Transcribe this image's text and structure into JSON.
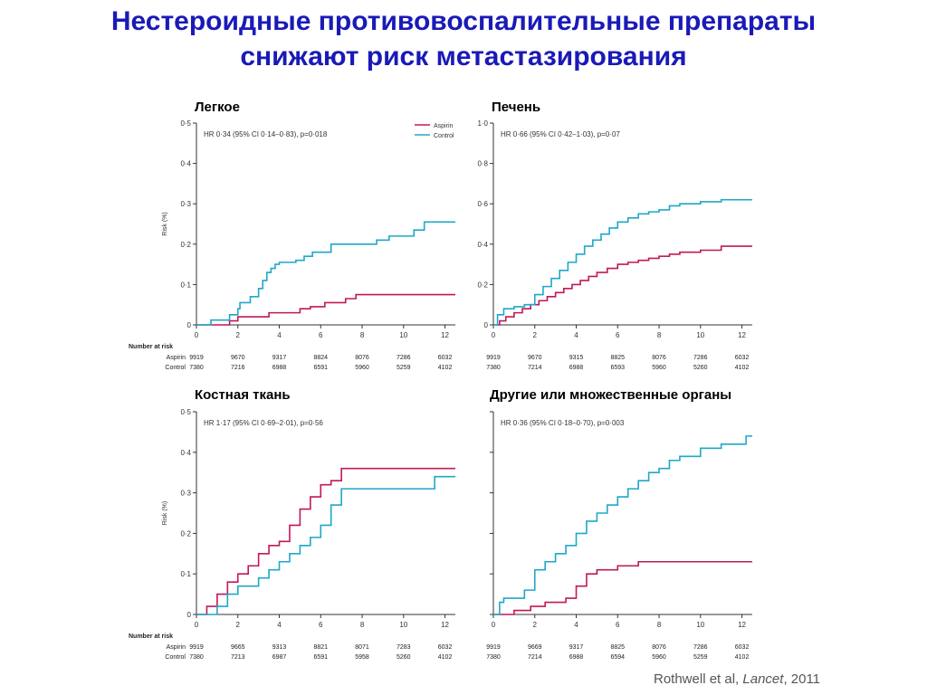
{
  "title_line1": "Нестероидные противовоспалительные препараты",
  "title_line2": "снижают риск метастазирования",
  "citation": {
    "authors": "Rothwell et al, ",
    "journal": "Lancet",
    "year": ", 2011"
  },
  "colors": {
    "title": "#1a1ab8",
    "aspirin": "#c0185a",
    "control": "#1ea8c8"
  },
  "chart_data": [
    {
      "type": "line",
      "panel_label": "Легкое",
      "annotation": "HR 0·34 (95% CI 0·14–0·83), p=0·018",
      "xlabel": "",
      "ylabel": "Risk (%)",
      "xlim": [
        0,
        12.5
      ],
      "ylim": [
        0,
        0.5
      ],
      "xticks": [
        0,
        2,
        4,
        6,
        8,
        10,
        12
      ],
      "yticks": [
        0,
        0.1,
        0.2,
        0.3,
        0.4,
        0.5
      ],
      "ytick_labels": [
        "0",
        "0·1",
        "0·2",
        "0·3",
        "0·4",
        "0·5"
      ],
      "legend": [
        "Aspirin",
        "Control"
      ],
      "legend_position": "top-right",
      "series": [
        {
          "name": "Aspirin",
          "color": "#c0185a",
          "step": true,
          "x": [
            0,
            1.6,
            2,
            3.5,
            5,
            5.5,
            6.2,
            7.2,
            7.7,
            12.5
          ],
          "y": [
            0,
            0.01,
            0.02,
            0.03,
            0.04,
            0.045,
            0.055,
            0.065,
            0.075,
            0.075
          ]
        },
        {
          "name": "Control",
          "color": "#1ea8c8",
          "step": true,
          "x": [
            0,
            0.7,
            1.6,
            2,
            2.1,
            2.6,
            3,
            3.2,
            3.4,
            3.6,
            3.8,
            4,
            4.4,
            4.8,
            5.2,
            5.6,
            6,
            6.5,
            7.3,
            8.7,
            9.3,
            10.5,
            11,
            12.5
          ],
          "y": [
            0,
            0.012,
            0.025,
            0.04,
            0.055,
            0.07,
            0.09,
            0.11,
            0.13,
            0.14,
            0.15,
            0.155,
            0.155,
            0.16,
            0.17,
            0.18,
            0.18,
            0.2,
            0.2,
            0.21,
            0.22,
            0.235,
            0.255,
            0.255
          ]
        }
      ],
      "risk_table": {
        "header": "Number at risk",
        "rows": [
          {
            "label": "Aspirin",
            "values": [
              "9919",
              "9670",
              "9317",
              "8824",
              "8076",
              "7286",
              "6032"
            ]
          },
          {
            "label": "Control",
            "values": [
              "7380",
              "7216",
              "6988",
              "6591",
              "5960",
              "5259",
              "4102"
            ]
          }
        ]
      }
    },
    {
      "type": "line",
      "panel_label": "Печень",
      "annotation": "HR 0·66 (95% CI 0·42–1·03), p=0·07",
      "xlabel": "",
      "ylabel": "",
      "xlim": [
        0,
        12.5
      ],
      "ylim": [
        0,
        1.0
      ],
      "xticks": [
        0,
        2,
        4,
        6,
        8,
        10,
        12
      ],
      "yticks": [
        0,
        0.2,
        0.4,
        0.6,
        0.8,
        1.0
      ],
      "ytick_labels": [
        "0",
        "0·2",
        "0·4",
        "0·6",
        "0·8",
        "1·0"
      ],
      "series": [
        {
          "name": "Aspirin",
          "color": "#c0185a",
          "step": true,
          "x": [
            0,
            0.3,
            0.6,
            1,
            1.4,
            1.8,
            2.2,
            2.6,
            3,
            3.4,
            3.8,
            4.2,
            4.6,
            5,
            5.5,
            6,
            6.5,
            7,
            7.5,
            8,
            8.5,
            9,
            10,
            11,
            12.5
          ],
          "y": [
            0,
            0.02,
            0.04,
            0.06,
            0.08,
            0.1,
            0.12,
            0.14,
            0.16,
            0.18,
            0.2,
            0.22,
            0.24,
            0.26,
            0.28,
            0.3,
            0.31,
            0.32,
            0.33,
            0.34,
            0.35,
            0.36,
            0.37,
            0.39,
            0.39
          ]
        },
        {
          "name": "Control",
          "color": "#1ea8c8",
          "step": true,
          "x": [
            0,
            0.2,
            0.5,
            1,
            1.5,
            2,
            2.4,
            2.8,
            3.2,
            3.6,
            4,
            4.4,
            4.8,
            5.2,
            5.6,
            6,
            6.5,
            7,
            7.5,
            8,
            8.5,
            9,
            10,
            11,
            12.5
          ],
          "y": [
            0,
            0.05,
            0.08,
            0.09,
            0.1,
            0.15,
            0.19,
            0.23,
            0.27,
            0.31,
            0.35,
            0.39,
            0.42,
            0.45,
            0.48,
            0.51,
            0.53,
            0.55,
            0.56,
            0.57,
            0.59,
            0.6,
            0.61,
            0.62,
            0.62
          ]
        }
      ],
      "risk_table": {
        "rows": [
          {
            "label": "Aspirin",
            "values": [
              "9919",
              "9670",
              "9315",
              "8825",
              "8076",
              "7286",
              "6032"
            ]
          },
          {
            "label": "Control",
            "values": [
              "7380",
              "7214",
              "6988",
              "6593",
              "5960",
              "5260",
              "4102"
            ]
          }
        ]
      }
    },
    {
      "type": "line",
      "panel_label": "Костная ткань",
      "annotation": "HR 1·17 (95% CI 0·69–2·01), p=0·56",
      "xlabel": "",
      "ylabel": "Risk (%)",
      "xlim": [
        0,
        12.5
      ],
      "ylim": [
        0,
        0.5
      ],
      "xticks": [
        0,
        2,
        4,
        6,
        8,
        10,
        12
      ],
      "yticks": [
        0,
        0.1,
        0.2,
        0.3,
        0.4,
        0.5
      ],
      "ytick_labels": [
        "0",
        "0·1",
        "0·2",
        "0·3",
        "0·4",
        "0·5"
      ],
      "series": [
        {
          "name": "Aspirin",
          "color": "#c0185a",
          "step": true,
          "x": [
            0,
            0.5,
            1,
            1.5,
            2,
            2.5,
            3,
            3.5,
            4,
            4.5,
            5,
            5.5,
            6,
            6.5,
            7,
            8,
            12.5
          ],
          "y": [
            0,
            0.02,
            0.05,
            0.08,
            0.1,
            0.12,
            0.15,
            0.17,
            0.18,
            0.22,
            0.26,
            0.29,
            0.32,
            0.33,
            0.36,
            0.36,
            0.36
          ]
        },
        {
          "name": "Control",
          "color": "#1ea8c8",
          "step": true,
          "x": [
            0,
            1,
            1.5,
            2,
            3,
            3.5,
            4,
            4.5,
            5,
            5.5,
            6,
            6.5,
            7,
            8,
            9,
            11.5,
            12.5
          ],
          "y": [
            0,
            0.02,
            0.05,
            0.07,
            0.09,
            0.11,
            0.13,
            0.15,
            0.17,
            0.19,
            0.22,
            0.27,
            0.31,
            0.31,
            0.31,
            0.34,
            0.34
          ]
        }
      ],
      "risk_table": {
        "header": "Number at risk",
        "rows": [
          {
            "label": "Aspirin",
            "values": [
              "9919",
              "9665",
              "9313",
              "8821",
              "8071",
              "7283",
              "6032"
            ]
          },
          {
            "label": "Control",
            "values": [
              "7380",
              "7213",
              "6987",
              "6591",
              "5958",
              "5260",
              "4102"
            ]
          }
        ]
      }
    },
    {
      "type": "line",
      "panel_label": "Другие или множественные органы",
      "annotation": "HR 0·36 (95% CI 0·18–0·70), p=0·003",
      "xlabel": "",
      "ylabel": "",
      "xlim": [
        0,
        12.5
      ],
      "ylim": [
        0,
        0.5
      ],
      "xticks": [
        0,
        2,
        4,
        6,
        8,
        10,
        12
      ],
      "yticks": [
        0,
        0.1,
        0.2,
        0.3,
        0.4,
        0.5
      ],
      "ytick_labels": [
        "",
        "",
        "",
        "",
        "",
        ""
      ],
      "series": [
        {
          "name": "Aspirin",
          "color": "#c0185a",
          "step": true,
          "x": [
            0,
            1,
            1.8,
            2.5,
            3.5,
            4,
            4.5,
            5,
            6,
            7,
            12.5
          ],
          "y": [
            0,
            0.01,
            0.02,
            0.03,
            0.04,
            0.07,
            0.1,
            0.11,
            0.12,
            0.13,
            0.13
          ]
        },
        {
          "name": "Control",
          "color": "#1ea8c8",
          "step": true,
          "x": [
            0,
            0.3,
            0.5,
            1.5,
            2,
            2.5,
            3,
            3.5,
            4,
            4.5,
            5,
            5.5,
            6,
            6.5,
            7,
            7.5,
            8,
            8.5,
            9,
            10,
            11,
            12.2,
            12.5
          ],
          "y": [
            0,
            0.03,
            0.04,
            0.06,
            0.11,
            0.13,
            0.15,
            0.17,
            0.2,
            0.23,
            0.25,
            0.27,
            0.29,
            0.31,
            0.33,
            0.35,
            0.36,
            0.38,
            0.39,
            0.41,
            0.42,
            0.44,
            0.44
          ]
        }
      ],
      "risk_table": {
        "rows": [
          {
            "label": "Aspirin",
            "values": [
              "9919",
              "9669",
              "9317",
              "8825",
              "8076",
              "7286",
              "6032"
            ]
          },
          {
            "label": "Control",
            "values": [
              "7380",
              "7214",
              "6988",
              "6594",
              "5960",
              "5259",
              "4102"
            ]
          }
        ]
      }
    }
  ]
}
